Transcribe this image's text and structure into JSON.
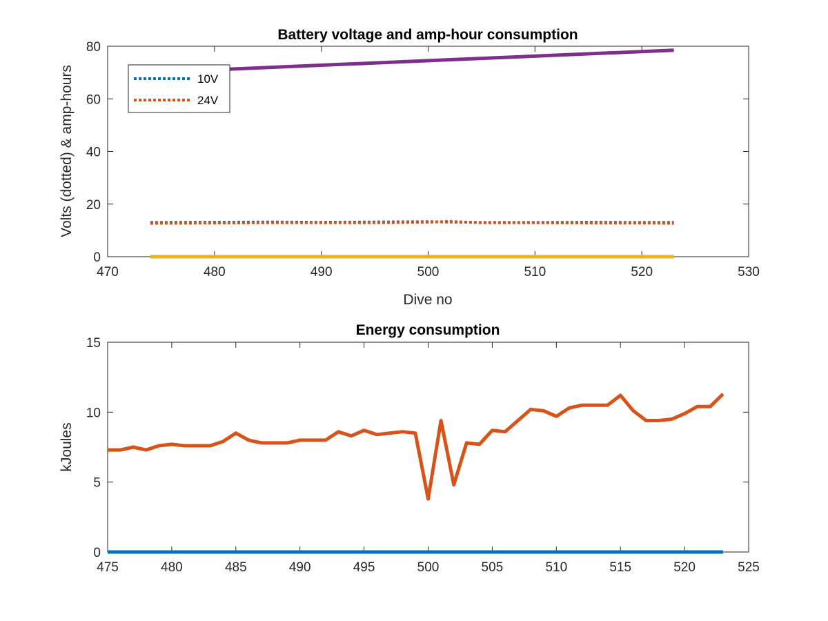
{
  "chart_data": [
    {
      "type": "line",
      "title": "Battery voltage and amp-hour consumption",
      "xlabel": "Dive no",
      "ylabel": "Volts (dotted) & amp-hours",
      "xlim": [
        470,
        530
      ],
      "ylim": [
        0,
        80
      ],
      "xticks": [
        470,
        480,
        490,
        500,
        510,
        520,
        530
      ],
      "yticks": [
        0,
        20,
        40,
        60,
        80
      ],
      "legend": {
        "placement": "top-left",
        "entries": [
          "10V",
          "24V"
        ]
      },
      "series": [
        {
          "name": "10V",
          "style": "dotted",
          "color": "#0072BD",
          "x": [
            474,
            480,
            485,
            490,
            495,
            500,
            505,
            510,
            515,
            520,
            523
          ],
          "y": [
            13.0,
            13.1,
            13.2,
            13.1,
            13.2,
            13.3,
            13.0,
            13.0,
            13.1,
            13.0,
            13.0
          ]
        },
        {
          "name": "24V",
          "style": "dotted",
          "color": "#D95319",
          "x": [
            474,
            480,
            485,
            490,
            495,
            500,
            502,
            505,
            510,
            515,
            520,
            523
          ],
          "y": [
            12.7,
            12.8,
            12.9,
            12.9,
            12.9,
            13.1,
            13.4,
            12.9,
            12.9,
            12.8,
            12.8,
            12.7
          ]
        },
        {
          "style": "solid",
          "color": "#EDB120",
          "x": [
            474,
            523
          ],
          "y": [
            0,
            0
          ]
        },
        {
          "style": "solid",
          "color": "#7E2F8E",
          "x": [
            474,
            523
          ],
          "y": [
            70.0,
            78.5
          ]
        }
      ]
    },
    {
      "type": "line",
      "title": "Energy consumption",
      "xlabel": "",
      "ylabel": "kJoules",
      "xlim": [
        475,
        525
      ],
      "ylim": [
        0,
        15
      ],
      "xticks": [
        475,
        480,
        485,
        490,
        495,
        500,
        505,
        510,
        515,
        520,
        525
      ],
      "yticks": [
        0,
        5,
        10,
        15
      ],
      "series": [
        {
          "style": "solid",
          "color": "#0072BD",
          "x": [
            475,
            523
          ],
          "y": [
            0,
            0
          ]
        },
        {
          "style": "solid",
          "color": "#D95319",
          "x": [
            475,
            476,
            477,
            478,
            479,
            480,
            481,
            482,
            483,
            484,
            485,
            486,
            487,
            488,
            489,
            490,
            491,
            492,
            493,
            494,
            495,
            496,
            497,
            498,
            499,
            500,
            501,
            502,
            503,
            504,
            505,
            506,
            507,
            508,
            509,
            510,
            511,
            512,
            513,
            514,
            515,
            516,
            517,
            518,
            519,
            520,
            521,
            522,
            523
          ],
          "y": [
            7.3,
            7.3,
            7.5,
            7.3,
            7.6,
            7.7,
            7.6,
            7.6,
            7.6,
            7.9,
            8.5,
            8.0,
            7.8,
            7.8,
            7.8,
            8.0,
            8.0,
            8.0,
            8.6,
            8.3,
            8.7,
            8.4,
            8.5,
            8.6,
            8.5,
            3.8,
            9.4,
            4.8,
            7.8,
            7.7,
            8.7,
            8.6,
            9.4,
            10.2,
            10.1,
            9.7,
            10.3,
            10.5,
            10.5,
            10.5,
            11.2,
            10.1,
            9.4,
            9.4,
            9.5,
            9.9,
            10.4,
            10.4,
            11.3
          ]
        }
      ]
    }
  ]
}
